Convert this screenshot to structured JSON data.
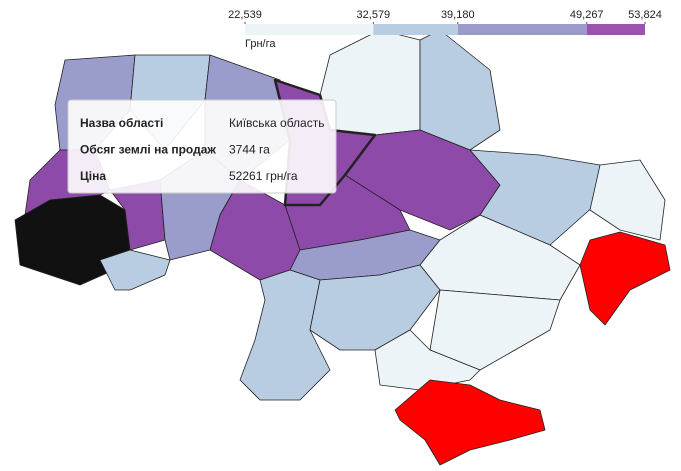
{
  "legend": {
    "unit": "Грн/га",
    "breaks": [
      {
        "value": 22539,
        "label": "22,539"
      },
      {
        "value": 32579,
        "label": "32,579"
      },
      {
        "value": 39180,
        "label": "39,180"
      },
      {
        "value": 49267,
        "label": "49,267"
      },
      {
        "value": 53824,
        "label": "53,824"
      }
    ],
    "colors": [
      "#edf4f7",
      "#b9cde2",
      "#9b9bcb",
      "#9d52b0"
    ]
  },
  "tooltip": {
    "rows": [
      [
        "Назва області",
        "Київська область"
      ],
      [
        "Обсяг землі на продаж",
        "3744 га"
      ],
      [
        "Ціна",
        "52261 грн/га"
      ]
    ]
  }
}
